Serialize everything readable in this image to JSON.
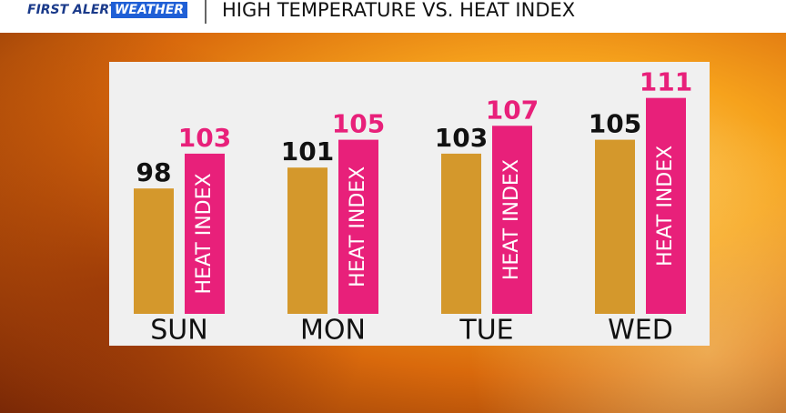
{
  "header": {
    "brand": "FIRST ALERT",
    "brand_tag": "WEATHER"
  },
  "chart_data": {
    "type": "bar",
    "title": "HIGH TEMPERATURE VS. HEAT INDEX",
    "categories": [
      "SUN",
      "MON",
      "TUE",
      "WED"
    ],
    "series": [
      {
        "color": "#d4982c",
        "label_color": "#111111",
        "values": [
          98,
          101,
          103,
          105
        ]
      },
      {
        "name": "HEAT INDEX",
        "color": "#e8207a",
        "label_color": "#e8207a",
        "values": [
          103,
          105,
          107,
          111
        ]
      }
    ],
    "ylim": [
      80,
      112
    ]
  }
}
